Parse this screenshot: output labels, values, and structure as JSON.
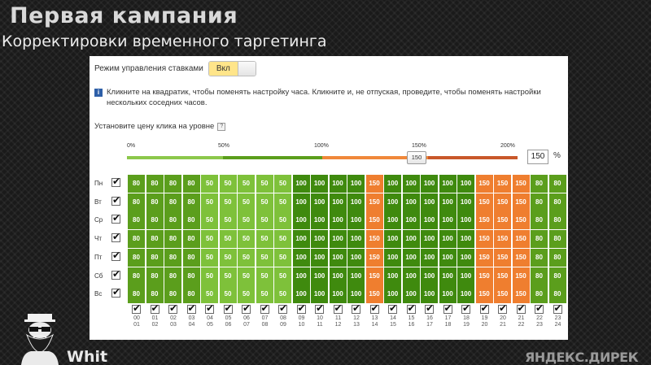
{
  "slide": {
    "title": "Первая кампания",
    "subtitle": "Корректировки временного таргетинга"
  },
  "panel": {
    "mode_label": "Режим управления ставками",
    "mode_value": "Вкл",
    "info_text": "Кликните на квадратик, чтобы поменять настройку часа. Кликните и, не отпуская, проведите, чтобы поменять настройки нескольких соседних часов.",
    "price_label": "Установите цену клика на уровне",
    "scale_labels": [
      "0%",
      "50%",
      "100%",
      "150%",
      "200%"
    ],
    "slider_value": "150",
    "input_value": "150",
    "percent_sign": "%"
  },
  "days": [
    "Пн",
    "Вт",
    "Ср",
    "Чт",
    "Пт",
    "Сб",
    "Вс"
  ],
  "hours": [
    "00\n01",
    "01\n02",
    "02\n03",
    "03\n04",
    "04\n05",
    "05\n06",
    "06\n07",
    "07\n08",
    "08\n09",
    "09\n10",
    "10\n11",
    "11\n12",
    "12\n13",
    "13\n14",
    "14\n15",
    "15\n16",
    "16\n17",
    "17\n18",
    "18\n19",
    "19\n20",
    "20\n21",
    "21\n22",
    "22\n23",
    "23\n24"
  ],
  "grid_values": [
    [
      "80",
      "80",
      "80",
      "80",
      "50",
      "50",
      "50",
      "50",
      "50",
      "100",
      "100",
      "100",
      "100",
      "150",
      "100",
      "100",
      "100",
      "100",
      "100",
      "150",
      "150",
      "150",
      "80",
      "80"
    ],
    [
      "80",
      "80",
      "80",
      "80",
      "50",
      "50",
      "50",
      "50",
      "50",
      "100",
      "100",
      "100",
      "100",
      "150",
      "100",
      "100",
      "100",
      "100",
      "100",
      "150",
      "150",
      "150",
      "80",
      "80"
    ],
    [
      "80",
      "80",
      "80",
      "80",
      "50",
      "50",
      "50",
      "50",
      "50",
      "100",
      "100",
      "100",
      "100",
      "150",
      "100",
      "100",
      "100",
      "100",
      "100",
      "150",
      "150",
      "150",
      "80",
      "80"
    ],
    [
      "80",
      "80",
      "80",
      "80",
      "50",
      "50",
      "50",
      "50",
      "50",
      "100",
      "100",
      "100",
      "100",
      "150",
      "100",
      "100",
      "100",
      "100",
      "100",
      "150",
      "150",
      "150",
      "80",
      "80"
    ],
    [
      "80",
      "80",
      "80",
      "80",
      "50",
      "50",
      "50",
      "50",
      "50",
      "100",
      "100",
      "100",
      "100",
      "150",
      "100",
      "100",
      "100",
      "100",
      "100",
      "150",
      "150",
      "150",
      "80",
      "80"
    ],
    [
      "80",
      "80",
      "80",
      "80",
      "50",
      "50",
      "50",
      "50",
      "50",
      "100",
      "100",
      "100",
      "100",
      "150",
      "100",
      "100",
      "100",
      "100",
      "100",
      "150",
      "150",
      "150",
      "80",
      "80"
    ],
    [
      "80",
      "80",
      "80",
      "80",
      "50",
      "50",
      "50",
      "50",
      "50",
      "100",
      "100",
      "100",
      "100",
      "150",
      "100",
      "100",
      "100",
      "100",
      "100",
      "150",
      "150",
      "150",
      "80",
      "80"
    ]
  ],
  "colors": {
    "v50": "#7ec13a",
    "v80": "#5b9e1c",
    "v100": "#3f8a0e",
    "v150": "#ef7e2f",
    "track_light": "#8cc84b",
    "track_mid": "#5b9e1c",
    "track_orange": "#f0883a",
    "track_red": "#c9582a"
  },
  "brand": {
    "left_text": "Whit",
    "right_text": "ЯНДЕКС.ДИРЕК"
  }
}
